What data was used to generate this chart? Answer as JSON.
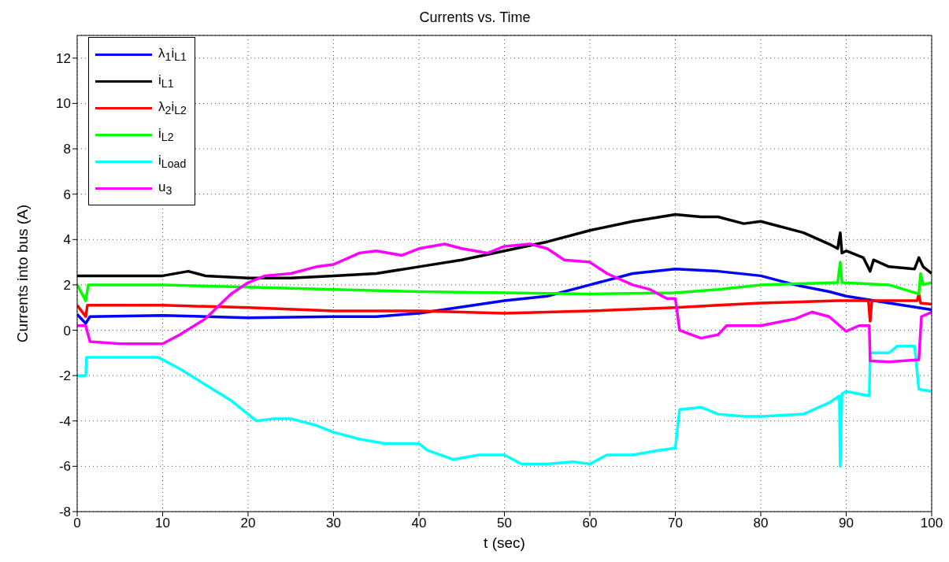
{
  "chart_data": {
    "type": "line",
    "title": "Currents vs. Time",
    "xlabel": "t (sec)",
    "ylabel": "Currents into bus (A)",
    "xlim": [
      0,
      100
    ],
    "xticks": [
      0,
      10,
      20,
      30,
      40,
      50,
      60,
      70,
      80,
      90,
      100
    ],
    "ylim": [
      -8,
      13
    ],
    "yticks": [
      -8,
      -6,
      -4,
      -2,
      0,
      2,
      4,
      6,
      8,
      10,
      12
    ],
    "grid": true,
    "legend": "top left",
    "marker": "none",
    "line_style": "solid",
    "series": [
      {
        "name": "λ$_{1}$i$_{L1}$",
        "color": "#0000ff",
        "x": [
          0,
          1,
          1.5,
          10,
          20,
          30,
          35,
          40,
          50,
          55,
          60,
          65,
          70,
          75,
          80,
          84,
          88,
          90,
          95,
          100
        ],
        "values": [
          0.7,
          0.3,
          0.6,
          0.65,
          0.55,
          0.6,
          0.6,
          0.75,
          1.3,
          1.5,
          2.0,
          2.5,
          2.7,
          2.6,
          2.4,
          2.0,
          1.7,
          1.5,
          1.2,
          0.9
        ]
      },
      {
        "name": "i$_{L1}$",
        "color": "#000000",
        "x": [
          0,
          5,
          10,
          13,
          15,
          20,
          25,
          30,
          35,
          40,
          45,
          50,
          55,
          60,
          65,
          70,
          73,
          75,
          78,
          80,
          85,
          88,
          89,
          89.3,
          89.5,
          90,
          92,
          92.8,
          93.2,
          95,
          98,
          98.5,
          99,
          100
        ],
        "values": [
          2.4,
          2.4,
          2.4,
          2.6,
          2.4,
          2.3,
          2.3,
          2.4,
          2.5,
          2.8,
          3.1,
          3.5,
          3.9,
          4.4,
          4.8,
          5.1,
          5.0,
          5.0,
          4.7,
          4.8,
          4.3,
          3.8,
          3.6,
          4.3,
          3.4,
          3.5,
          3.2,
          2.6,
          3.1,
          2.8,
          2.7,
          3.2,
          2.8,
          2.5
        ]
      },
      {
        "name": "λ$_{2}$i$_{L2}$",
        "color": "#ff0000",
        "x": [
          0,
          1,
          1.2,
          10,
          20,
          30,
          40,
          50,
          60,
          70,
          75,
          80,
          89,
          92.6,
          92.8,
          93,
          98.3,
          98.5,
          98.7,
          100
        ],
        "values": [
          1.1,
          0.6,
          1.1,
          1.1,
          1.0,
          0.85,
          0.85,
          0.75,
          0.85,
          1.0,
          1.1,
          1.2,
          1.3,
          1.3,
          0.4,
          1.3,
          1.3,
          1.6,
          1.2,
          1.15
        ]
      },
      {
        "name": "i$_{L2}$",
        "color": "#00ff00",
        "x": [
          0,
          1,
          1.3,
          10,
          20,
          30,
          40,
          50,
          60,
          70,
          75,
          80,
          89,
          89.3,
          89.5,
          95,
          98.5,
          98.7,
          99,
          100
        ],
        "values": [
          2.0,
          1.3,
          2.0,
          2.0,
          1.9,
          1.8,
          1.7,
          1.65,
          1.6,
          1.65,
          1.8,
          2.0,
          2.1,
          3.0,
          2.1,
          2.0,
          1.6,
          2.5,
          2.0,
          2.1
        ]
      },
      {
        "name": "i$_{Load}$",
        "color": "#00ffff",
        "x": [
          0,
          1,
          1.1,
          9.5,
          12,
          15,
          18,
          20,
          21,
          23,
          25,
          28,
          30,
          33,
          36,
          40,
          41,
          44,
          47,
          50,
          52,
          55,
          58,
          60,
          62,
          65,
          68,
          70,
          70.5,
          73,
          75,
          78,
          80,
          85,
          88,
          89.2,
          89.3,
          89.5,
          90,
          92.7,
          92.8,
          95,
          96,
          98,
          98.5,
          100
        ],
        "values": [
          -2.0,
          -2.0,
          -1.2,
          -1.2,
          -1.7,
          -2.4,
          -3.1,
          -3.7,
          -4.0,
          -3.9,
          -3.9,
          -4.2,
          -4.5,
          -4.8,
          -5.0,
          -5.0,
          -5.3,
          -5.7,
          -5.5,
          -5.5,
          -5.9,
          -5.9,
          -5.8,
          -5.9,
          -5.5,
          -5.5,
          -5.3,
          -5.2,
          -3.5,
          -3.4,
          -3.7,
          -3.8,
          -3.8,
          -3.7,
          -3.2,
          -2.9,
          -6.0,
          -2.8,
          -2.7,
          -2.9,
          -1.0,
          -1.0,
          -0.7,
          -0.7,
          -2.6,
          -2.7
        ]
      },
      {
        "name": "u$_{3}$",
        "color": "#ff00ff",
        "x": [
          0,
          1,
          1.5,
          5,
          10,
          12,
          15,
          18,
          20,
          22,
          25,
          28,
          30,
          33,
          35,
          38,
          40,
          43,
          45,
          48,
          50,
          53,
          55,
          57,
          60,
          62,
          65,
          67,
          69,
          70,
          70.5,
          73,
          75,
          76,
          80,
          84,
          86,
          88,
          90,
          91.5,
          92.7,
          92.8,
          95,
          98.5,
          98.8,
          100
        ],
        "values": [
          0.2,
          0.2,
          -0.5,
          -0.6,
          -0.6,
          -0.2,
          0.5,
          1.6,
          2.1,
          2.4,
          2.5,
          2.8,
          2.9,
          3.4,
          3.5,
          3.3,
          3.6,
          3.8,
          3.6,
          3.4,
          3.7,
          3.8,
          3.6,
          3.1,
          3.0,
          2.5,
          2.0,
          1.8,
          1.4,
          1.4,
          0.0,
          -0.35,
          -0.2,
          0.2,
          0.2,
          0.5,
          0.8,
          0.6,
          -0.05,
          0.2,
          0.2,
          -1.35,
          -1.4,
          -1.3,
          0.6,
          0.8
        ]
      }
    ]
  }
}
